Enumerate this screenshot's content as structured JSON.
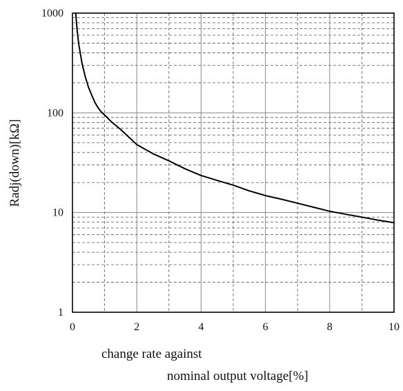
{
  "chart_data": {
    "type": "line",
    "title": "",
    "xlabel_line1": "change rate against",
    "xlabel_line2": "nominal output voltage[%]",
    "ylabel": "Radj(down)[kΩ]",
    "xscale": "linear",
    "yscale": "log",
    "xlim": [
      0,
      10
    ],
    "ylim": [
      1,
      1000
    ],
    "x_ticks": [
      0,
      2,
      4,
      6,
      8,
      10
    ],
    "x_tick_labels": [
      "0",
      "2",
      "4",
      "6",
      "8",
      "10"
    ],
    "y_ticks": [
      1,
      10,
      100,
      1000
    ],
    "y_tick_labels": [
      "1",
      "10",
      "100",
      "1000"
    ],
    "x_minor_ticks": [
      1,
      3,
      5,
      7,
      9
    ],
    "grid": true,
    "legend": "none",
    "series": [
      {
        "x": [
          0.1,
          0.15,
          0.2,
          0.3,
          0.4,
          0.5,
          0.6,
          0.7,
          0.8,
          0.9,
          1,
          1.2,
          1.5,
          2,
          2.5,
          3,
          3.5,
          4,
          4.5,
          5,
          5.5,
          6,
          6.5,
          7,
          7.5,
          8,
          8.5,
          9,
          9.5,
          10
        ],
        "y": [
          1000,
          650,
          480,
          310,
          230,
          180,
          150,
          127,
          112,
          102,
          95,
          82,
          68,
          48,
          39,
          33,
          27.5,
          23.5,
          21,
          18.8,
          16.5,
          14.8,
          13.6,
          12.4,
          11.3,
          10.3,
          9.6,
          9.0,
          8.4,
          7.9
        ]
      }
    ],
    "colors": {
      "curve": "#000000",
      "major_grid": "#888888",
      "minor_grid": "#555555",
      "frame": "#000000"
    }
  }
}
